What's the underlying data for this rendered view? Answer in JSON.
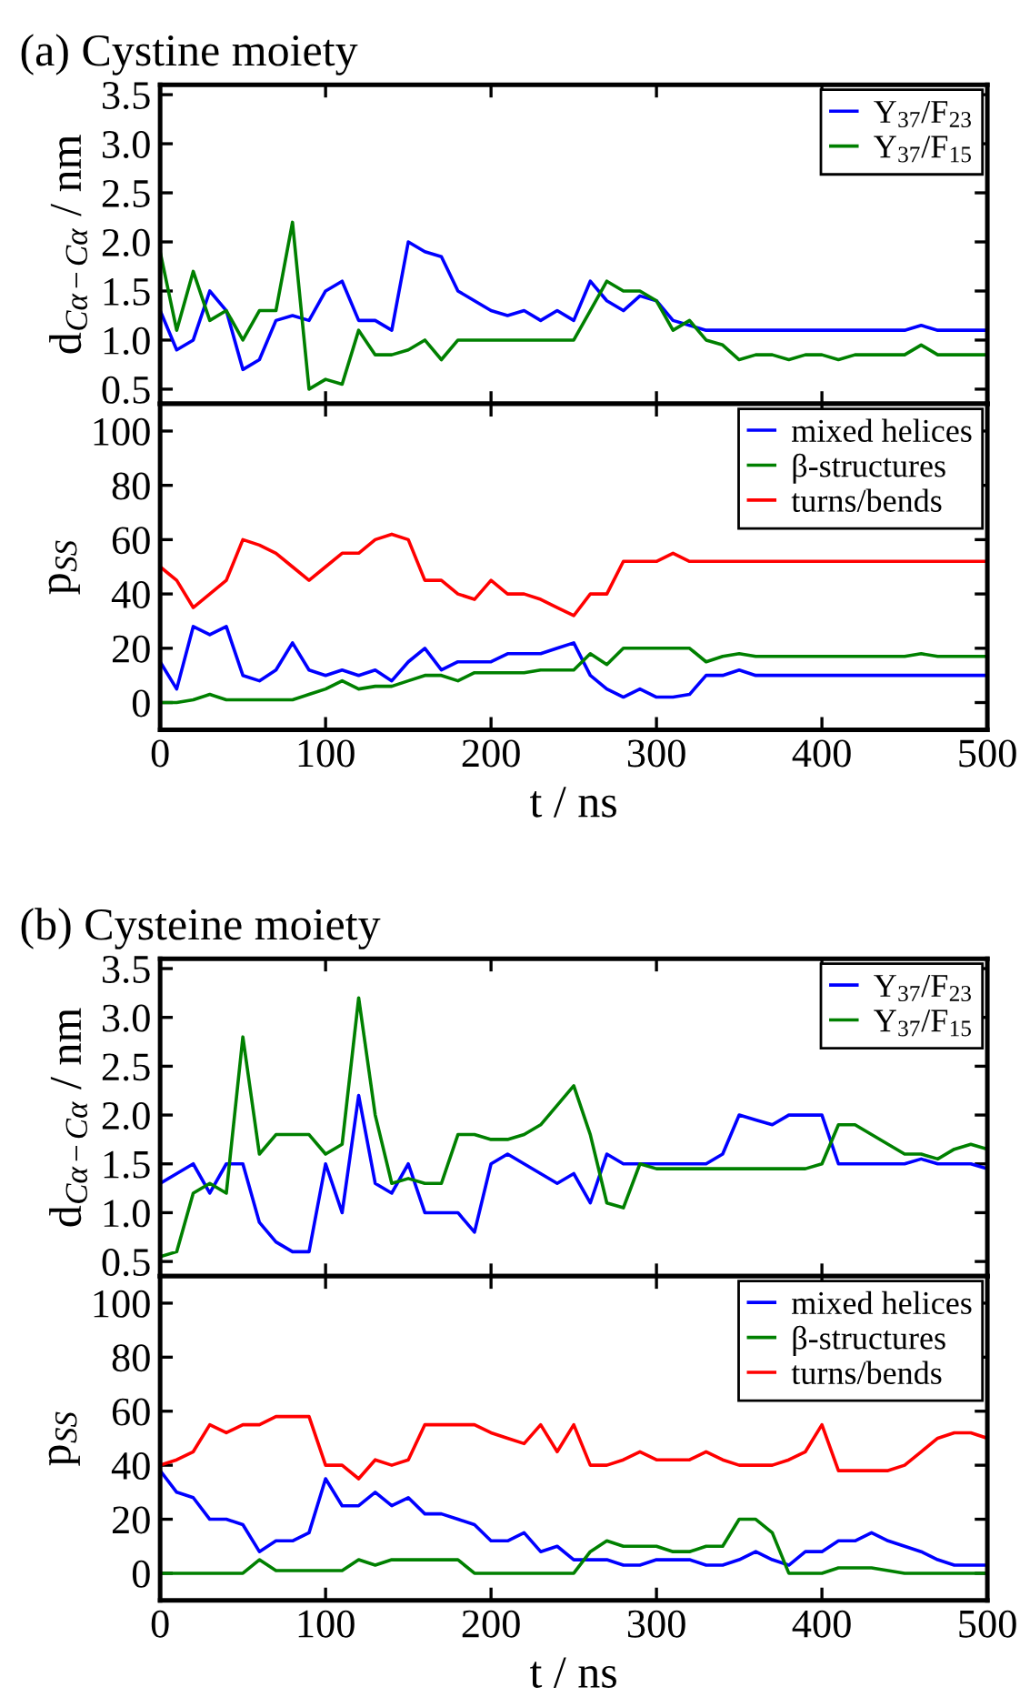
{
  "chart_data": [
    {
      "type": "line",
      "title": "(a) Cystine moiety",
      "ylabel": "d$_{Cα−Cα}$ / nm",
      "xlim": [
        0,
        500
      ],
      "xticks": [
        0,
        100,
        200,
        300,
        400,
        500
      ],
      "ylim": [
        0.35,
        3.6
      ],
      "yticks": [
        0.5,
        {
          "value": 1,
          "label": "1.0"
        },
        1.5,
        {
          "value": 2,
          "label": "2.0"
        },
        2.5,
        {
          "value": 3,
          "label": "3.0"
        },
        3.5
      ],
      "tick_labels": "y",
      "legend": "top right",
      "x": [
        0,
        10,
        20,
        30,
        40,
        50,
        60,
        70,
        80,
        90,
        100,
        110,
        120,
        130,
        140,
        150,
        160,
        170,
        180,
        190,
        200,
        210,
        220,
        230,
        240,
        250,
        260,
        270,
        280,
        290,
        300,
        310,
        320,
        330,
        340,
        350,
        360,
        370,
        380,
        390,
        400,
        410,
        420,
        430,
        440,
        450,
        460,
        470,
        480,
        490,
        500
      ],
      "series": [
        {
          "name": "Y$_{37}$/F$_{23}$",
          "color": "#0000ff",
          "values": [
            1.3,
            0.9,
            1.0,
            1.5,
            1.3,
            0.7,
            0.8,
            1.2,
            1.25,
            1.2,
            1.5,
            1.6,
            1.2,
            1.2,
            1.1,
            2.0,
            1.9,
            1.85,
            1.5,
            1.4,
            1.3,
            1.25,
            1.3,
            1.2,
            1.3,
            1.2,
            1.6,
            1.4,
            1.3,
            1.45,
            1.4,
            1.2,
            1.15,
            1.1,
            1.1,
            1.1,
            1.1,
            1.1,
            1.1,
            1.1,
            1.1,
            1.1,
            1.1,
            1.1,
            1.1,
            1.1,
            1.15,
            1.1,
            1.1,
            1.1,
            1.1
          ]
        },
        {
          "name": "Y$_{37}$/F$_{15}$",
          "color": "#008000",
          "values": [
            1.9,
            1.1,
            1.7,
            1.2,
            1.3,
            1.0,
            1.3,
            1.3,
            2.2,
            0.5,
            0.6,
            0.55,
            1.1,
            0.85,
            0.85,
            0.9,
            1.0,
            0.8,
            1.0,
            1.0,
            1.0,
            1.0,
            1.0,
            1.0,
            1.0,
            1.0,
            1.3,
            1.6,
            1.5,
            1.5,
            1.4,
            1.1,
            1.2,
            1.0,
            0.95,
            0.8,
            0.85,
            0.85,
            0.8,
            0.85,
            0.85,
            0.8,
            0.85,
            0.85,
            0.85,
            0.85,
            0.95,
            0.85,
            0.85,
            0.85,
            0.85
          ]
        }
      ]
    },
    {
      "type": "line",
      "xlabel": "t / ns",
      "ylabel": "p$_{SS}$",
      "xlim": [
        0,
        500
      ],
      "xticks": [
        0,
        100,
        200,
        300,
        400,
        500
      ],
      "ylim": [
        -10,
        110
      ],
      "yticks": [
        0,
        20,
        40,
        60,
        80,
        100
      ],
      "legend": "top right",
      "x": [
        0,
        10,
        20,
        30,
        40,
        50,
        60,
        70,
        80,
        90,
        100,
        110,
        120,
        130,
        140,
        150,
        160,
        170,
        180,
        190,
        200,
        210,
        220,
        230,
        240,
        250,
        260,
        270,
        280,
        290,
        300,
        310,
        320,
        330,
        340,
        350,
        360,
        370,
        380,
        390,
        400,
        410,
        420,
        430,
        440,
        450,
        460,
        470,
        480,
        490,
        500
      ],
      "series": [
        {
          "name": "mixed helices",
          "color": "#0000ff",
          "values": [
            15,
            5,
            28,
            25,
            28,
            10,
            8,
            12,
            22,
            12,
            10,
            12,
            10,
            12,
            8,
            15,
            20,
            12,
            15,
            15,
            15,
            18,
            18,
            18,
            20,
            22,
            10,
            5,
            2,
            5,
            2,
            2,
            3,
            10,
            10,
            12,
            10,
            10,
            10,
            10,
            10,
            10,
            10,
            10,
            10,
            10,
            10,
            10,
            10,
            10,
            10
          ]
        },
        {
          "name": "β-structures",
          "color": "#008000",
          "values": [
            0,
            0,
            1,
            3,
            1,
            1,
            1,
            1,
            1,
            3,
            5,
            8,
            5,
            6,
            6,
            8,
            10,
            10,
            8,
            11,
            11,
            11,
            11,
            12,
            12,
            12,
            18,
            14,
            20,
            20,
            20,
            20,
            20,
            15,
            17,
            18,
            17,
            17,
            17,
            17,
            17,
            17,
            17,
            17,
            17,
            17,
            18,
            17,
            17,
            17,
            17
          ]
        },
        {
          "name": "turns/bends",
          "color": "#ff0000",
          "values": [
            50,
            45,
            35,
            40,
            45,
            60,
            58,
            55,
            50,
            45,
            50,
            55,
            55,
            60,
            62,
            60,
            45,
            45,
            40,
            38,
            45,
            40,
            40,
            38,
            35,
            32,
            40,
            40,
            52,
            52,
            52,
            55,
            52,
            52,
            52,
            52,
            52,
            52,
            52,
            52,
            52,
            52,
            52,
            52,
            52,
            52,
            52,
            52,
            52,
            52,
            52
          ]
        }
      ]
    },
    {
      "type": "line",
      "title": "(b) Cysteine moiety",
      "ylabel": "d$_{Cα−Cα}$ / nm",
      "xlim": [
        0,
        500
      ],
      "xticks": [
        0,
        100,
        200,
        300,
        400,
        500
      ],
      "ylim": [
        0.35,
        3.6
      ],
      "yticks": [
        0.5,
        {
          "value": 1,
          "label": "1.0"
        },
        1.5,
        {
          "value": 2,
          "label": "2.0"
        },
        2.5,
        {
          "value": 3,
          "label": "3.0"
        },
        3.5
      ],
      "tick_labels": "y",
      "legend": "top right",
      "x": [
        0,
        10,
        20,
        30,
        40,
        50,
        60,
        70,
        80,
        90,
        100,
        110,
        120,
        130,
        140,
        150,
        160,
        170,
        180,
        190,
        200,
        210,
        220,
        230,
        240,
        250,
        260,
        270,
        280,
        290,
        300,
        310,
        320,
        330,
        340,
        350,
        360,
        370,
        380,
        390,
        400,
        410,
        420,
        430,
        440,
        450,
        460,
        470,
        480,
        490,
        500
      ],
      "series": [
        {
          "name": "Y$_{37}$/F$_{23}$",
          "color": "#0000ff",
          "values": [
            1.3,
            1.4,
            1.5,
            1.2,
            1.5,
            1.5,
            0.9,
            0.7,
            0.6,
            0.6,
            1.5,
            1.0,
            2.2,
            1.3,
            1.2,
            1.5,
            1.0,
            1.0,
            1.0,
            0.8,
            1.5,
            1.6,
            1.5,
            1.4,
            1.3,
            1.4,
            1.1,
            1.6,
            1.5,
            1.5,
            1.5,
            1.5,
            1.5,
            1.5,
            1.6,
            2.0,
            1.95,
            1.9,
            2.0,
            2.0,
            2.0,
            1.5,
            1.5,
            1.5,
            1.5,
            1.5,
            1.55,
            1.5,
            1.5,
            1.5,
            1.45
          ]
        },
        {
          "name": "Y$_{37}$/F$_{15}$",
          "color": "#008000",
          "values": [
            0.55,
            0.6,
            1.2,
            1.3,
            1.2,
            2.8,
            1.6,
            1.8,
            1.8,
            1.8,
            1.6,
            1.7,
            3.2,
            2.0,
            1.3,
            1.35,
            1.3,
            1.3,
            1.8,
            1.8,
            1.75,
            1.75,
            1.8,
            1.9,
            2.1,
            2.3,
            1.8,
            1.1,
            1.05,
            1.5,
            1.45,
            1.45,
            1.45,
            1.45,
            1.45,
            1.45,
            1.45,
            1.45,
            1.45,
            1.45,
            1.5,
            1.9,
            1.9,
            1.8,
            1.7,
            1.6,
            1.6,
            1.55,
            1.65,
            1.7,
            1.65
          ]
        }
      ]
    },
    {
      "type": "line",
      "xlabel": "t / ns",
      "ylabel": "p$_{SS}$",
      "xlim": [
        0,
        500
      ],
      "xticks": [
        0,
        100,
        200,
        300,
        400,
        500
      ],
      "ylim": [
        -10,
        110
      ],
      "yticks": [
        0,
        20,
        40,
        60,
        80,
        100
      ],
      "legend": "top right",
      "x": [
        0,
        10,
        20,
        30,
        40,
        50,
        60,
        70,
        80,
        90,
        100,
        110,
        120,
        130,
        140,
        150,
        160,
        170,
        180,
        190,
        200,
        210,
        220,
        230,
        240,
        250,
        260,
        270,
        280,
        290,
        300,
        310,
        320,
        330,
        340,
        350,
        360,
        370,
        380,
        390,
        400,
        410,
        420,
        430,
        440,
        450,
        460,
        470,
        480,
        490,
        500
      ],
      "series": [
        {
          "name": "mixed helices",
          "color": "#0000ff",
          "values": [
            38,
            30,
            28,
            20,
            20,
            18,
            8,
            12,
            12,
            15,
            35,
            25,
            25,
            30,
            25,
            28,
            22,
            22,
            20,
            18,
            12,
            12,
            15,
            8,
            10,
            5,
            5,
            5,
            3,
            3,
            5,
            5,
            5,
            3,
            3,
            5,
            8,
            5,
            3,
            8,
            8,
            12,
            12,
            15,
            12,
            10,
            8,
            5,
            3,
            3,
            3
          ]
        },
        {
          "name": "β-structures",
          "color": "#008000",
          "values": [
            0,
            0,
            0,
            0,
            0,
            0,
            5,
            1,
            1,
            1,
            1,
            1,
            5,
            3,
            5,
            5,
            5,
            5,
            5,
            0,
            0,
            0,
            0,
            0,
            0,
            0,
            8,
            12,
            10,
            10,
            10,
            8,
            8,
            10,
            10,
            20,
            20,
            15,
            0,
            0,
            0,
            2,
            2,
            2,
            1,
            0,
            0,
            0,
            0,
            0,
            0
          ]
        },
        {
          "name": "turns/bends",
          "color": "#ff0000",
          "values": [
            40,
            42,
            45,
            55,
            52,
            55,
            55,
            58,
            58,
            58,
            40,
            40,
            35,
            42,
            40,
            42,
            55,
            55,
            55,
            55,
            52,
            50,
            48,
            55,
            45,
            55,
            40,
            40,
            42,
            45,
            42,
            42,
            42,
            45,
            42,
            40,
            40,
            40,
            42,
            45,
            55,
            38,
            38,
            38,
            38,
            40,
            45,
            50,
            52,
            52,
            50
          ]
        }
      ]
    }
  ]
}
